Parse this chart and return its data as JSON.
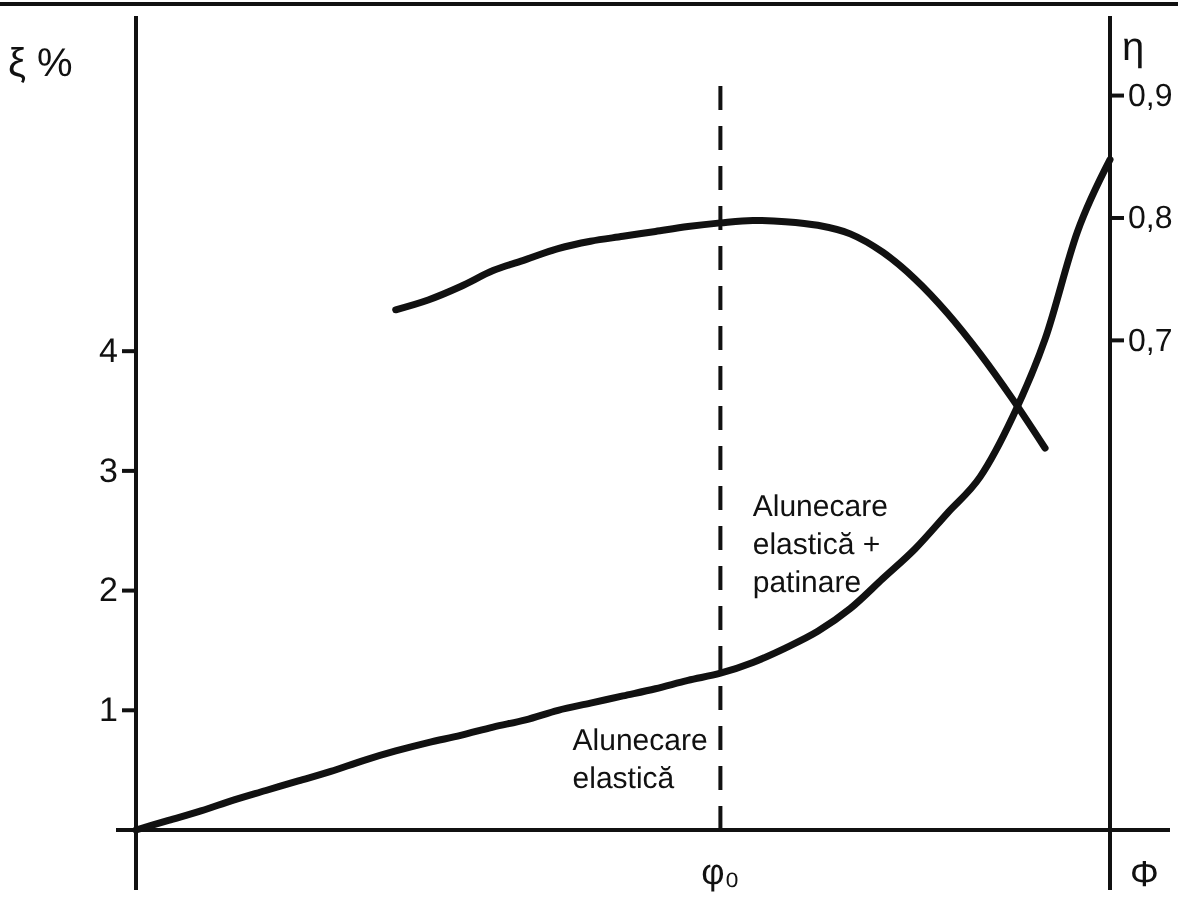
{
  "chart_data": {
    "type": "line",
    "xlabel": "Φ",
    "ylabel": "ξ %",
    "y2label": "η",
    "categories": [
      null,
      null,
      null,
      null,
      null,
      null,
      null,
      null,
      null,
      null,
      null,
      null,
      null,
      null,
      null,
      null,
      null,
      null,
      "φ₀",
      null,
      null,
      null,
      null,
      null,
      null,
      null,
      null,
      null,
      null,
      null,
      null
    ],
    "ylim": [
      0,
      6.8
    ],
    "yticks": [
      1,
      2,
      3,
      4
    ],
    "y2lim": [
      0.3,
      0.965
    ],
    "y2ticks": [
      {
        "value": 0.7,
        "label": "0,7"
      },
      {
        "value": 0.8,
        "label": "0,8"
      },
      {
        "value": 0.9,
        "label": "0,9"
      }
    ],
    "marker": "none",
    "line_style": "solid",
    "grid": false,
    "series": [
      {
        "color": "#111111",
        "values": [
          0,
          0.08,
          0.16,
          0.25,
          0.33,
          0.41,
          0.49,
          0.58,
          0.66,
          0.73,
          0.79,
          0.86,
          0.92,
          1.0,
          1.06,
          1.12,
          1.18,
          1.25,
          1.31,
          1.4,
          1.52,
          1.66,
          1.85,
          2.1,
          2.35,
          2.65,
          2.95,
          3.45,
          4.1,
          5.0,
          5.6
        ]
      },
      {
        "color": "#111111",
        "axis": "y2",
        "values": [
          null,
          null,
          null,
          null,
          null,
          null,
          null,
          null,
          0.725,
          0.733,
          0.744,
          0.757,
          0.766,
          0.775,
          0.781,
          0.785,
          0.789,
          0.793,
          0.796,
          0.798,
          0.797,
          0.794,
          0.787,
          0.772,
          0.75,
          0.722,
          0.689,
          0.652,
          0.612,
          null,
          null
        ]
      }
    ],
    "ref_lines": [
      {
        "axis": "x",
        "value": "φ₀",
        "line_style": "dashed",
        "color": "#111111"
      }
    ],
    "annotations": [
      "Alunecare\nelastică",
      "Alunecare\nelastică +\npatinare"
    ]
  }
}
